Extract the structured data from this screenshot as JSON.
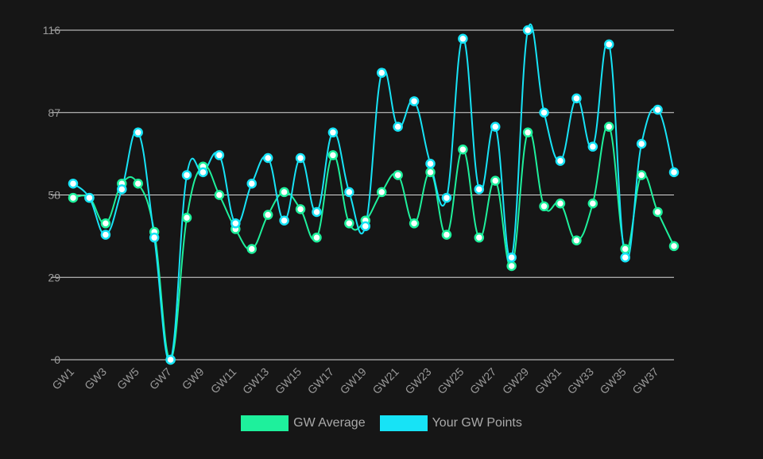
{
  "chart_data": {
    "type": "line",
    "title": "",
    "xlabel": "",
    "ylabel": "",
    "ylim": [
      0,
      116
    ],
    "yticks": [
      0,
      29,
      58,
      87,
      116
    ],
    "grid": "horizontal",
    "legend_position": "bottom-center",
    "categories": [
      "GW1",
      "GW2",
      "GW3",
      "GW4",
      "GW5",
      "GW6",
      "GW7",
      "GW8",
      "GW9",
      "GW10",
      "GW11",
      "GW12",
      "GW13",
      "GW14",
      "GW15",
      "GW16",
      "GW17",
      "GW18",
      "GW19",
      "GW20",
      "GW21",
      "GW22",
      "GW23",
      "GW24",
      "GW25",
      "GW26",
      "GW27",
      "GW28",
      "GW29",
      "GW30",
      "GW31",
      "GW32",
      "GW33",
      "GW34",
      "GW35",
      "GW36",
      "GW37",
      "GW38"
    ],
    "tick_labels": [
      "GW1",
      "GW3",
      "GW5",
      "GW7",
      "GW9",
      "GW11",
      "GW13",
      "GW15",
      "GW17",
      "GW19",
      "GW21",
      "GW23",
      "GW25",
      "GW27",
      "GW29",
      "GW31",
      "GW33",
      "GW35",
      "GW37"
    ],
    "series": [
      {
        "name": "GW Average",
        "color": "#1ef09c",
        "values": [
          57,
          57,
          48,
          62,
          62,
          45,
          0,
          50,
          68,
          58,
          46,
          39,
          51,
          59,
          53,
          43,
          72,
          48,
          49,
          59,
          65,
          48,
          66,
          44,
          74,
          43,
          63,
          33,
          80,
          54,
          55,
          42,
          55,
          82,
          39,
          65,
          52,
          40
        ]
      },
      {
        "name": "Your GW Points",
        "color": "#17e3f6",
        "values": [
          62,
          57,
          44,
          60,
          80,
          43,
          0,
          65,
          66,
          72,
          48,
          62,
          71,
          49,
          71,
          52,
          80,
          59,
          47,
          101,
          82,
          91,
          69,
          57,
          113,
          60,
          82,
          36,
          116,
          87,
          70,
          92,
          75,
          111,
          36,
          76,
          88,
          66
        ]
      }
    ]
  }
}
